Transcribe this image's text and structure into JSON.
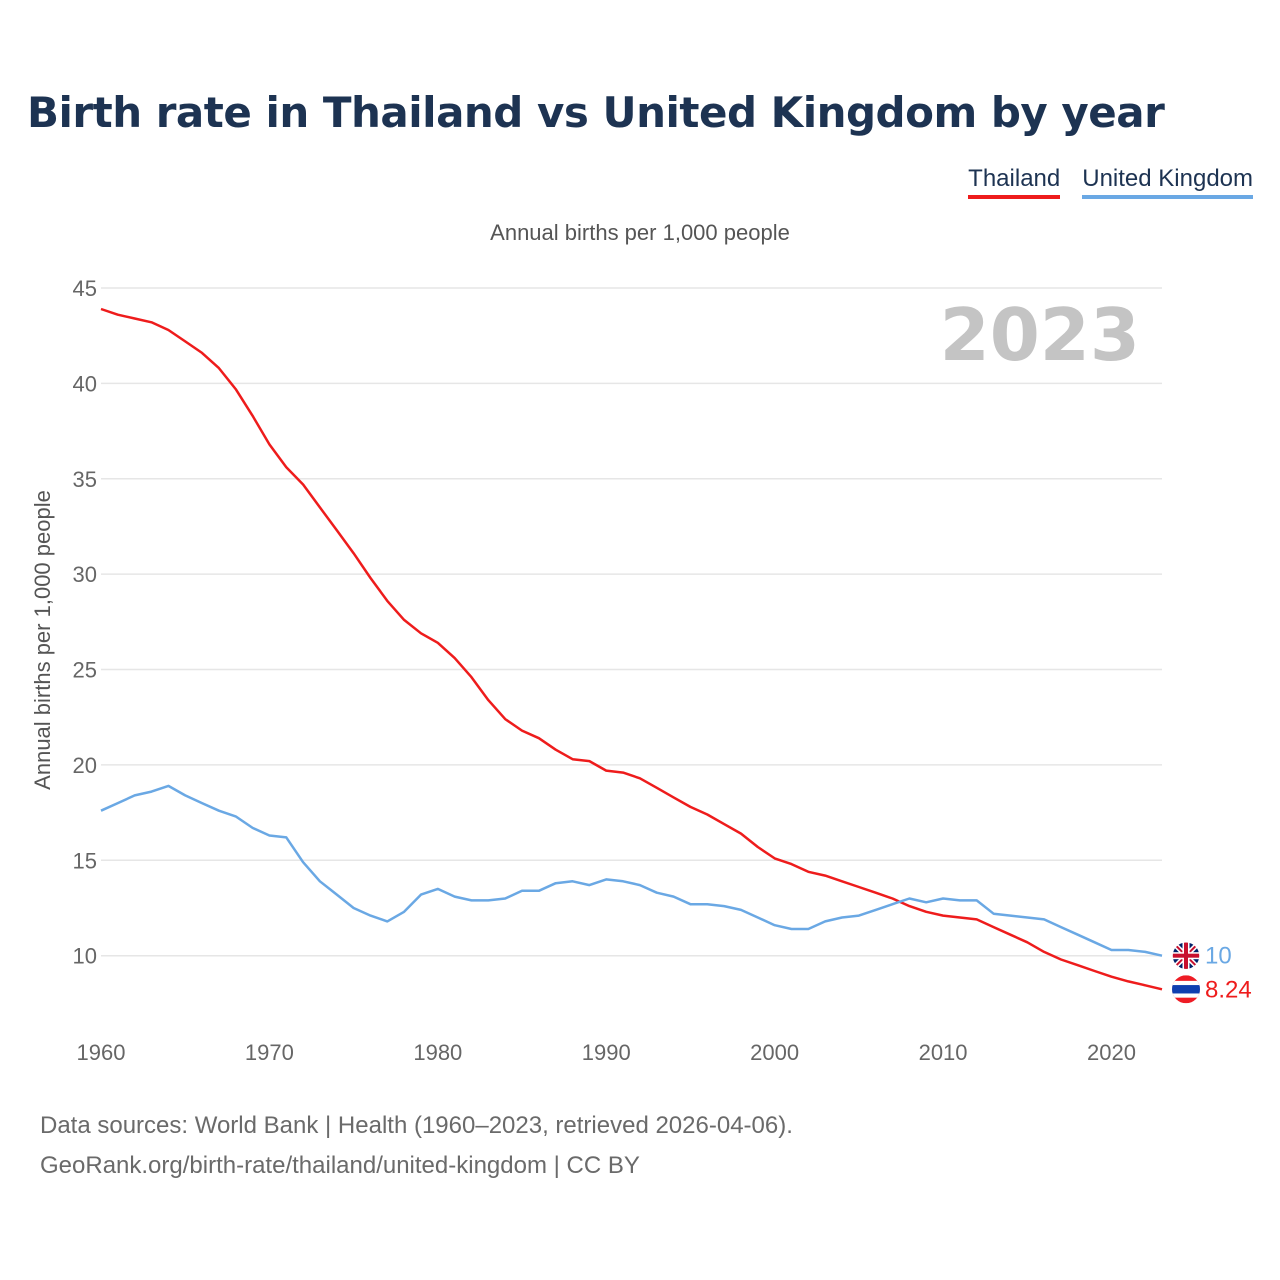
{
  "title": "Birth rate in Thailand vs United Kingdom by year",
  "legend": {
    "thailand": "Thailand",
    "uk": "United Kingdom"
  },
  "source": {
    "line1": "Data sources: World Bank | Health (1960–2023, retrieved 2026-04-06).",
    "line2": "GeoRank.org/birth-rate/thailand/united-kingdom | CC BY"
  },
  "colors": {
    "thailand": "#ee1c1c",
    "uk": "#6aa8e4",
    "title": "#1d3352",
    "grid": "#e6e6e6"
  },
  "chart_data": {
    "type": "line",
    "title": "Birth rate in Thailand vs United Kingdom by year",
    "subtitle": "Annual births per 1,000 people",
    "ylabel": "Annual births per 1,000 people",
    "xlabel": "",
    "year_label": "2023",
    "xlim": [
      1960,
      2023
    ],
    "ylim": [
      6,
      45
    ],
    "yticks": [
      10,
      15,
      20,
      25,
      30,
      35,
      40,
      45
    ],
    "xticks": [
      1960,
      1970,
      1980,
      1990,
      2000,
      2010,
      2020
    ],
    "x": [
      1960,
      1961,
      1962,
      1963,
      1964,
      1965,
      1966,
      1967,
      1968,
      1969,
      1970,
      1971,
      1972,
      1973,
      1974,
      1975,
      1976,
      1977,
      1978,
      1979,
      1980,
      1981,
      1982,
      1983,
      1984,
      1985,
      1986,
      1987,
      1988,
      1989,
      1990,
      1991,
      1992,
      1993,
      1994,
      1995,
      1996,
      1997,
      1998,
      1999,
      2000,
      2001,
      2002,
      2003,
      2004,
      2005,
      2006,
      2007,
      2008,
      2009,
      2010,
      2011,
      2012,
      2013,
      2014,
      2015,
      2016,
      2017,
      2018,
      2019,
      2020,
      2021,
      2022,
      2023
    ],
    "series": [
      {
        "name": "Thailand",
        "end_label": "8.24",
        "values": [
          43.9,
          43.6,
          43.4,
          43.2,
          42.8,
          42.2,
          41.6,
          40.8,
          39.7,
          38.3,
          36.8,
          35.6,
          34.7,
          33.5,
          32.3,
          31.1,
          29.8,
          28.6,
          27.6,
          26.9,
          26.4,
          25.6,
          24.6,
          23.4,
          22.4,
          21.8,
          21.4,
          20.8,
          20.3,
          20.2,
          19.7,
          19.6,
          19.3,
          18.8,
          18.3,
          17.8,
          17.4,
          16.9,
          16.4,
          15.7,
          15.1,
          14.8,
          14.4,
          14.2,
          13.9,
          13.6,
          13.3,
          13.0,
          12.6,
          12.3,
          12.1,
          12.0,
          11.9,
          11.5,
          11.1,
          10.7,
          10.2,
          9.8,
          9.5,
          9.2,
          8.9,
          8.65,
          8.45,
          8.24
        ]
      },
      {
        "name": "United Kingdom",
        "end_label": "10",
        "values": [
          17.6,
          18.0,
          18.4,
          18.6,
          18.9,
          18.4,
          18.0,
          17.6,
          17.3,
          16.7,
          16.3,
          16.2,
          14.9,
          13.9,
          13.2,
          12.5,
          12.1,
          11.8,
          12.3,
          13.2,
          13.5,
          13.1,
          12.9,
          12.9,
          13.0,
          13.4,
          13.4,
          13.8,
          13.9,
          13.7,
          14.0,
          13.9,
          13.7,
          13.3,
          13.1,
          12.7,
          12.7,
          12.6,
          12.4,
          12.0,
          11.6,
          11.4,
          11.4,
          11.8,
          12.0,
          12.1,
          12.4,
          12.7,
          13.0,
          12.8,
          13.0,
          12.9,
          12.9,
          12.2,
          12.1,
          12.0,
          11.9,
          11.5,
          11.1,
          10.7,
          10.3,
          10.3,
          10.2,
          10.0
        ]
      }
    ]
  }
}
